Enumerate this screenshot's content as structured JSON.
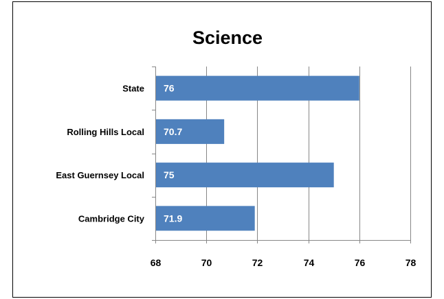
{
  "chart_data": {
    "type": "bar",
    "orientation": "horizontal",
    "title": "Science",
    "categories": [
      "State",
      "Rolling Hills Local",
      "East Guernsey Local",
      "Cambridge City"
    ],
    "values": [
      76,
      70.7,
      75,
      71.9
    ],
    "data_labels": [
      "76",
      "70.7",
      "75",
      "71.9"
    ],
    "xlim": [
      68,
      78
    ],
    "x_ticks": [
      "68",
      "70",
      "72",
      "74",
      "76",
      "78"
    ],
    "grid": "vertical",
    "legend": "none",
    "bar_color": "#4f81bd",
    "gridline_color": "#868686"
  }
}
